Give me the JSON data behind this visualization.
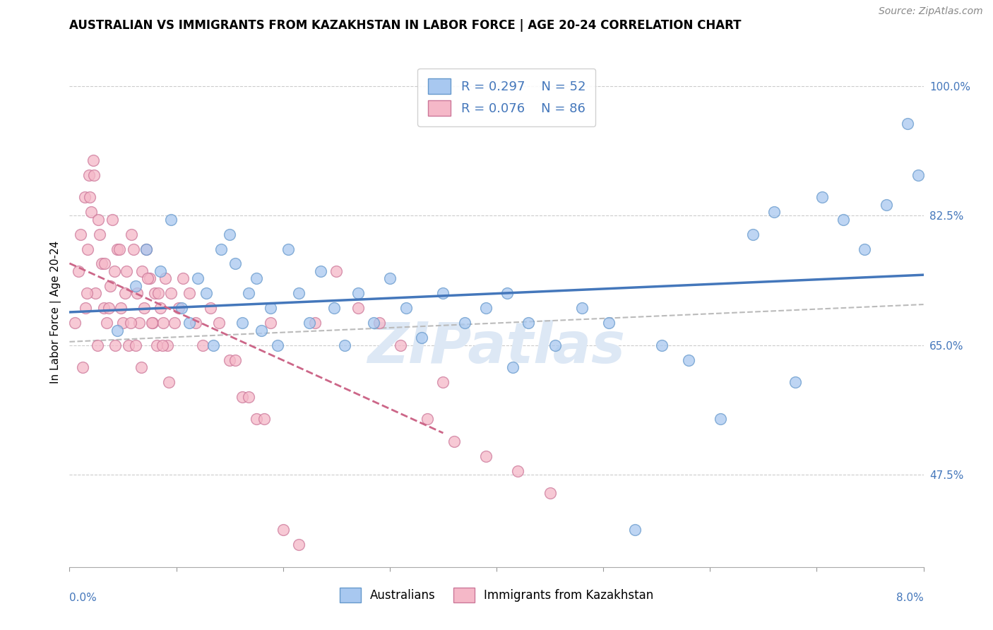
{
  "title": "AUSTRALIAN VS IMMIGRANTS FROM KAZAKHSTAN IN LABOR FORCE | AGE 20-24 CORRELATION CHART",
  "source": "Source: ZipAtlas.com",
  "ylabel": "In Labor Force | Age 20-24",
  "xlim": [
    0.0,
    8.0
  ],
  "ylim": [
    35.0,
    104.0
  ],
  "right_yticks": [
    47.5,
    65.0,
    82.5,
    100.0
  ],
  "legend_label_blue": "Australians",
  "legend_label_pink": "Immigrants from Kazakhstan",
  "blue_color": "#a8c8f0",
  "pink_color": "#f5b8c8",
  "blue_edge_color": "#6699cc",
  "pink_edge_color": "#cc7799",
  "blue_line_color": "#4477bb",
  "pink_line_color": "#cc6688",
  "gray_line_color": "#bbbbbb",
  "right_tick_color": "#4477bb",
  "watermark_color": "#dde8f5",
  "title_fontsize": 12,
  "source_fontsize": 10,
  "axis_label_fontsize": 11,
  "tick_fontsize": 11,
  "legend_fontsize": 13,
  "blue_scatter_x": [
    0.45,
    0.62,
    0.72,
    0.85,
    0.95,
    1.05,
    1.12,
    1.2,
    1.28,
    1.35,
    1.42,
    1.5,
    1.55,
    1.62,
    1.68,
    1.75,
    1.8,
    1.88,
    1.95,
    2.05,
    2.15,
    2.25,
    2.35,
    2.48,
    2.58,
    2.7,
    2.85,
    3.0,
    3.15,
    3.3,
    3.5,
    3.7,
    3.9,
    4.1,
    4.3,
    4.55,
    4.8,
    5.05,
    5.3,
    5.55,
    5.8,
    6.1,
    6.4,
    6.6,
    6.8,
    7.05,
    7.25,
    7.45,
    7.65,
    7.85,
    7.95,
    4.15
  ],
  "blue_scatter_y": [
    67,
    73,
    78,
    75,
    82,
    70,
    68,
    74,
    72,
    65,
    78,
    80,
    76,
    68,
    72,
    74,
    67,
    70,
    65,
    78,
    72,
    68,
    75,
    70,
    65,
    72,
    68,
    74,
    70,
    66,
    72,
    68,
    70,
    72,
    68,
    65,
    70,
    68,
    40,
    65,
    63,
    55,
    80,
    83,
    60,
    85,
    82,
    78,
    84,
    95,
    88,
    62
  ],
  "pink_scatter_x": [
    0.05,
    0.08,
    0.1,
    0.12,
    0.14,
    0.15,
    0.17,
    0.18,
    0.2,
    0.22,
    0.24,
    0.26,
    0.28,
    0.3,
    0.32,
    0.35,
    0.38,
    0.4,
    0.42,
    0.45,
    0.48,
    0.5,
    0.53,
    0.55,
    0.58,
    0.6,
    0.63,
    0.65,
    0.68,
    0.7,
    0.72,
    0.75,
    0.78,
    0.8,
    0.82,
    0.85,
    0.88,
    0.9,
    0.92,
    0.95,
    0.98,
    1.02,
    1.06,
    1.12,
    1.18,
    1.25,
    1.32,
    1.4,
    1.5,
    1.62,
    1.75,
    1.88,
    2.0,
    2.15,
    2.3,
    2.5,
    2.7,
    2.9,
    3.1,
    3.35,
    3.6,
    3.9,
    4.2,
    4.5,
    3.5,
    0.16,
    0.19,
    0.23,
    0.27,
    0.33,
    0.37,
    0.43,
    0.47,
    0.52,
    0.57,
    0.62,
    0.67,
    0.73,
    0.77,
    0.83,
    0.87,
    0.93,
    1.55,
    1.68,
    1.82
  ],
  "pink_scatter_y": [
    68,
    75,
    80,
    62,
    85,
    70,
    78,
    88,
    83,
    90,
    72,
    65,
    80,
    76,
    70,
    68,
    73,
    82,
    75,
    78,
    70,
    68,
    75,
    65,
    80,
    78,
    72,
    68,
    75,
    70,
    78,
    74,
    68,
    72,
    65,
    70,
    68,
    74,
    65,
    72,
    68,
    70,
    74,
    72,
    68,
    65,
    70,
    68,
    63,
    58,
    55,
    68,
    40,
    38,
    68,
    75,
    70,
    68,
    65,
    55,
    52,
    50,
    48,
    45,
    60,
    72,
    85,
    88,
    82,
    76,
    70,
    65,
    78,
    72,
    68,
    65,
    62,
    74,
    68,
    72,
    65,
    60,
    63,
    58,
    55
  ]
}
